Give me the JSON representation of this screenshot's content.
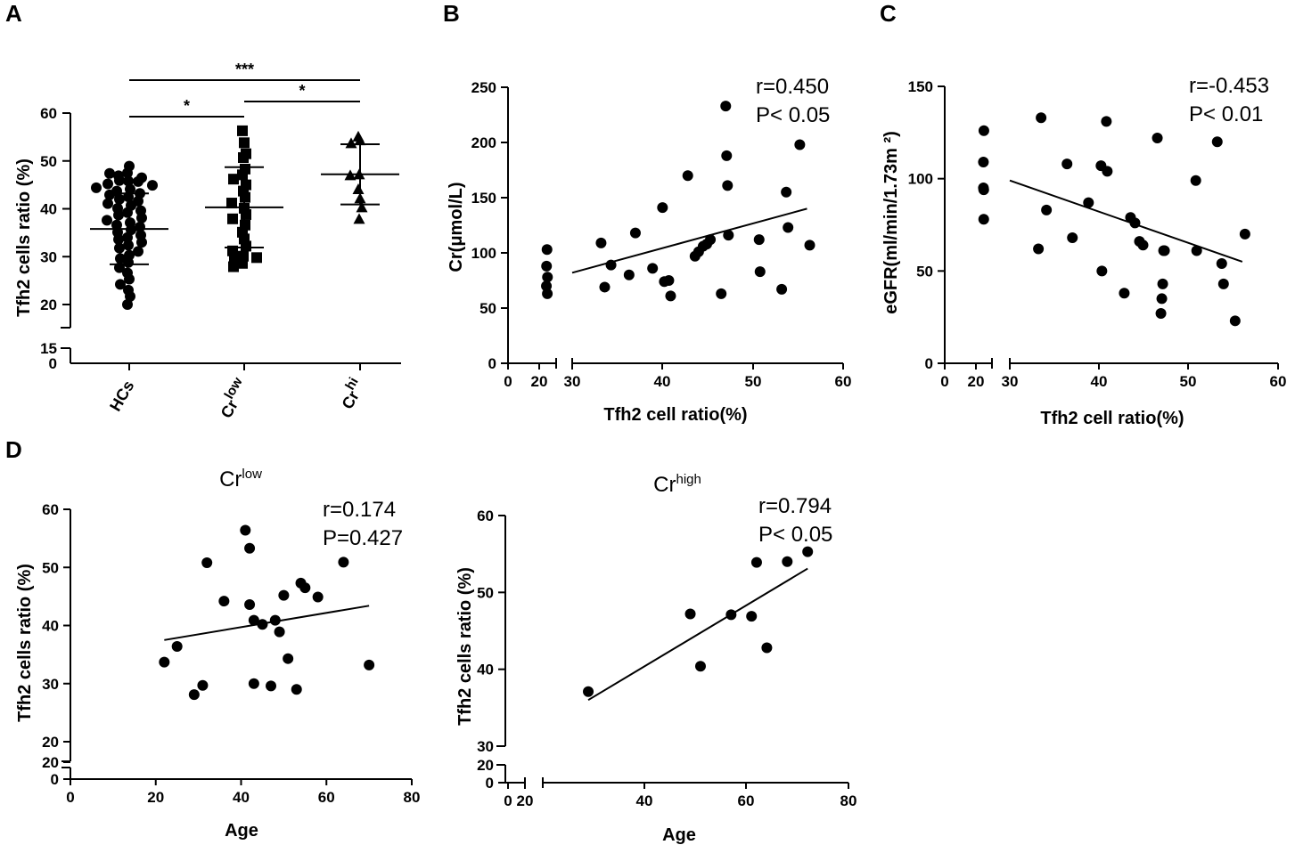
{
  "panels": {
    "A": {
      "letter": "A"
    },
    "B": {
      "letter": "B"
    },
    "C": {
      "letter": "C"
    },
    "D": {
      "letter": "D"
    }
  },
  "chart_data": [
    {
      "id": "A",
      "type": "scatter",
      "subtype": "dot-plot",
      "ylabel": "Tfh2 cells ratio (%)",
      "ylim": [
        0,
        60
      ],
      "y_break": [
        15,
        20
      ],
      "yticks_low": [
        0,
        15
      ],
      "yticks_high": [
        20,
        30,
        40,
        50,
        60
      ],
      "groups": [
        {
          "label": "HCs",
          "label_sup": "",
          "marker": "circle",
          "mean": 35.8,
          "sd_low": 28.4,
          "sd_high": 43.2,
          "values": [
            47.5,
            46.9,
            46.5,
            45.8,
            45.9,
            45.7,
            45.2,
            44.9,
            44.4,
            44.1,
            43.7,
            43.2,
            42.9,
            42.5,
            42.0,
            41.6,
            41.1,
            40.7,
            40.1,
            39.6,
            39.2,
            38.7,
            38.1,
            37.6,
            37.1,
            36.6,
            36.2,
            35.6,
            35.1,
            34.5,
            34.0,
            33.6,
            33.0,
            32.4,
            31.8,
            31.1,
            30.3,
            29.6,
            28.8,
            27.7,
            26.6,
            25.3,
            24.2,
            23.0,
            21.7,
            20.0,
            48.9,
            47.4
          ]
        },
        {
          "label": "Cr",
          "label_sup": "low",
          "marker": "square",
          "mean": 40.3,
          "sd_low": 31.9,
          "sd_high": 48.7,
          "values": [
            56.3,
            53.8,
            51.5,
            50.7,
            48.3,
            47.1,
            46.2,
            45.0,
            43.7,
            42.4,
            41.2,
            40.1,
            38.8,
            37.9,
            36.6,
            35.1,
            33.7,
            32.2,
            30.1,
            29.3,
            28.6,
            27.9,
            29.8,
            31.2
          ]
        },
        {
          "label": "Cr",
          "label_sup": "hi",
          "marker": "triangle",
          "mean": 47.2,
          "sd_low": 40.9,
          "sd_high": 53.5,
          "values": [
            55.0,
            54.2,
            53.6,
            47.1,
            46.9,
            44.0,
            42.1,
            40.2,
            37.8
          ]
        }
      ],
      "significance": [
        {
          "from": 0,
          "to": 2,
          "label": "***"
        },
        {
          "from": 0,
          "to": 1,
          "label": "*"
        },
        {
          "from": 1,
          "to": 2,
          "label": "*"
        }
      ]
    },
    {
      "id": "B",
      "type": "scatter",
      "xlabel": "Tfh2 cell ratio(%)",
      "ylabel": "Cr(μmol/L)",
      "xlim": [
        0,
        60
      ],
      "ylim": [
        0,
        250
      ],
      "x_break": [
        25,
        30
      ],
      "xticks_low": [
        0,
        20
      ],
      "xticks_high": [
        30,
        40,
        50,
        60
      ],
      "yticks": [
        0,
        50,
        100,
        150,
        200,
        250
      ],
      "stat_r": "r=0.450",
      "stat_p": "P< 0.05",
      "fit": {
        "x": [
          30,
          56
        ],
        "y": [
          82,
          140
        ]
      },
      "x": [
        25.0,
        24.7,
        25.3,
        24.6,
        25.2,
        33.2,
        33.6,
        34.3,
        36.3,
        37.0,
        38.9,
        40.0,
        40.2,
        40.7,
        40.9,
        42.8,
        43.6,
        44.0,
        44.5,
        44.9,
        45.3,
        46.5,
        47.0,
        47.1,
        47.2,
        47.3,
        50.7,
        50.8,
        53.2,
        53.7,
        53.9,
        55.2,
        56.3
      ],
      "y": [
        103,
        88,
        78,
        70,
        63,
        109,
        69,
        89,
        80,
        118,
        86,
        141,
        74,
        75,
        61,
        170,
        97,
        101,
        106,
        108,
        112,
        63,
        233,
        188,
        161,
        116,
        112,
        83,
        67,
        155,
        123,
        198,
        107
      ]
    },
    {
      "id": "C",
      "type": "scatter",
      "xlabel": "Tfh2 cell ratio(%)",
      "ylabel": "eGFR(ml/min/1.73m ²)",
      "xlim": [
        0,
        60
      ],
      "ylim": [
        0,
        150
      ],
      "x_break": [
        25,
        30
      ],
      "xticks_low": [
        0,
        20
      ],
      "xticks_high": [
        30,
        40,
        50,
        60
      ],
      "yticks": [
        0,
        50,
        100,
        150
      ],
      "stat_r": "r=-0.453",
      "stat_p": "P< 0.01",
      "fit": {
        "x": [
          30,
          56
        ],
        "y": [
          99,
          55
        ]
      },
      "x": [
        25.1,
        24.8,
        24.8,
        25.0,
        25.0,
        33.2,
        33.5,
        34.1,
        36.4,
        37.0,
        38.8,
        40.2,
        40.3,
        40.8,
        40.9,
        42.8,
        43.5,
        44.0,
        44.5,
        44.9,
        46.5,
        46.9,
        47.0,
        47.1,
        47.2,
        47.3,
        50.8,
        50.9,
        53.2,
        53.7,
        53.9,
        55.2,
        56.3
      ],
      "y": [
        126,
        109,
        95,
        94,
        78,
        62,
        133,
        83,
        108,
        68,
        87,
        107,
        50,
        131,
        104,
        38,
        79,
        76,
        66,
        64,
        122,
        27,
        35,
        43,
        61,
        61,
        99,
        61,
        120,
        54,
        43,
        23,
        70
      ]
    },
    {
      "id": "D1",
      "type": "scatter",
      "title": "Cr",
      "title_sup": "low",
      "xlabel": "Age",
      "ylabel": "Tfh2 cells ratio (%)",
      "xlim": [
        0,
        80
      ],
      "ylim": [
        0,
        60
      ],
      "y_break": [
        20,
        20
      ],
      "xticks": [
        0,
        20,
        40,
        60,
        80
      ],
      "yticks_low": [
        0,
        20
      ],
      "yticks_high": [
        20,
        30,
        40,
        50,
        60
      ],
      "stat_r": "r=0.174",
      "stat_p": "P=0.427",
      "fit": {
        "x": [
          22,
          70
        ],
        "y": [
          37.5,
          43.4
        ]
      },
      "x": [
        22,
        25,
        29,
        31,
        32,
        36,
        41,
        42,
        42,
        43,
        45,
        47,
        48,
        49,
        50,
        51,
        53,
        54,
        55,
        58,
        64,
        70,
        43
      ],
      "y": [
        33.7,
        36.4,
        28.1,
        29.7,
        50.8,
        44.2,
        56.4,
        53.3,
        43.6,
        30.0,
        40.2,
        29.6,
        40.9,
        38.9,
        45.2,
        34.3,
        29.0,
        47.3,
        46.5,
        44.9,
        50.9,
        33.2,
        40.9
      ]
    },
    {
      "id": "D2",
      "type": "scatter",
      "title": "Cr",
      "title_sup": "high",
      "xlabel": "Age",
      "ylabel": "Tfh2 cells ratio (%)",
      "xlim": [
        0,
        80
      ],
      "ylim": [
        0,
        60
      ],
      "x_break": [
        20,
        30
      ],
      "y_break": [
        20,
        30
      ],
      "xticks_low": [
        0,
        20
      ],
      "xticks_high": [
        40,
        60,
        80
      ],
      "yticks_low": [
        0,
        20
      ],
      "yticks_high": [
        30,
        40,
        50,
        60
      ],
      "stat_r": "r=0.794",
      "stat_p": "P< 0.05",
      "fit": {
        "x": [
          29,
          72
        ],
        "y": [
          36.0,
          53.1
        ]
      },
      "x": [
        29,
        49,
        51,
        57,
        61,
        62,
        64,
        68,
        72
      ],
      "y": [
        37.1,
        47.2,
        40.4,
        47.1,
        46.9,
        53.9,
        42.8,
        54.0,
        55.3
      ]
    }
  ]
}
